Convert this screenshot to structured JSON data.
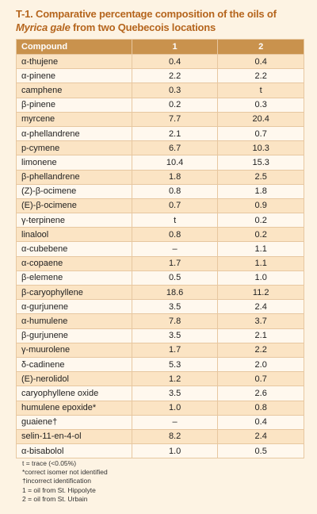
{
  "title": {
    "part1": "T-1. Comparative percentage composition of the oils of ",
    "italic": "Myrica gale",
    "part2": " from two Quebecois locations"
  },
  "table": {
    "headers": [
      "Compound",
      "1",
      "2"
    ],
    "rows": [
      [
        "α-thujene",
        "0.4",
        "0.4"
      ],
      [
        "α-pinene",
        "2.2",
        "2.2"
      ],
      [
        "camphene",
        "0.3",
        "t"
      ],
      [
        "β-pinene",
        "0.2",
        "0.3"
      ],
      [
        "myrcene",
        "7.7",
        "20.4"
      ],
      [
        "α-phellandrene",
        "2.1",
        "0.7"
      ],
      [
        "p-cymene",
        "6.7",
        "10.3"
      ],
      [
        "limonene",
        "10.4",
        "15.3"
      ],
      [
        "β-phellandrene",
        "1.8",
        "2.5"
      ],
      [
        "(Z)-β-ocimene",
        "0.8",
        "1.8"
      ],
      [
        "(E)-β-ocimene",
        "0.7",
        "0.9"
      ],
      [
        "γ-terpinene",
        "t",
        "0.2"
      ],
      [
        "linalool",
        "0.8",
        "0.2"
      ],
      [
        "α-cubebene",
        "–",
        "1.1"
      ],
      [
        "α-copaene",
        "1.7",
        "1.1"
      ],
      [
        "β-elemene",
        "0.5",
        "1.0"
      ],
      [
        "β-caryophyllene",
        "18.6",
        "11.2"
      ],
      [
        "α-gurjunene",
        "3.5",
        "2.4"
      ],
      [
        "α-humulene",
        "7.8",
        "3.7"
      ],
      [
        "β-gurjunene",
        "3.5",
        "2.1"
      ],
      [
        "γ-muurolene",
        "1.7",
        "2.2"
      ],
      [
        "δ-cadinene",
        "5.3",
        "2.0"
      ],
      [
        "(E)-nerolidol",
        "1.2",
        "0.7"
      ],
      [
        "caryophyllene oxide",
        "3.5",
        "2.6"
      ],
      [
        "humulene epoxide*",
        "1.0",
        "0.8"
      ],
      [
        "guaiene†",
        "–",
        "0.4"
      ],
      [
        "selin-11-en-4-ol",
        "8.2",
        "2.4"
      ],
      [
        "α-bisabolol",
        "1.0",
        "0.5"
      ]
    ]
  },
  "notes": [
    "t = trace (<0.05%)",
    "*correct isomer not identified",
    "†incorrect identification",
    "1 = oil from St. Hippolyte",
    "2 = oil from St. Urbain"
  ]
}
